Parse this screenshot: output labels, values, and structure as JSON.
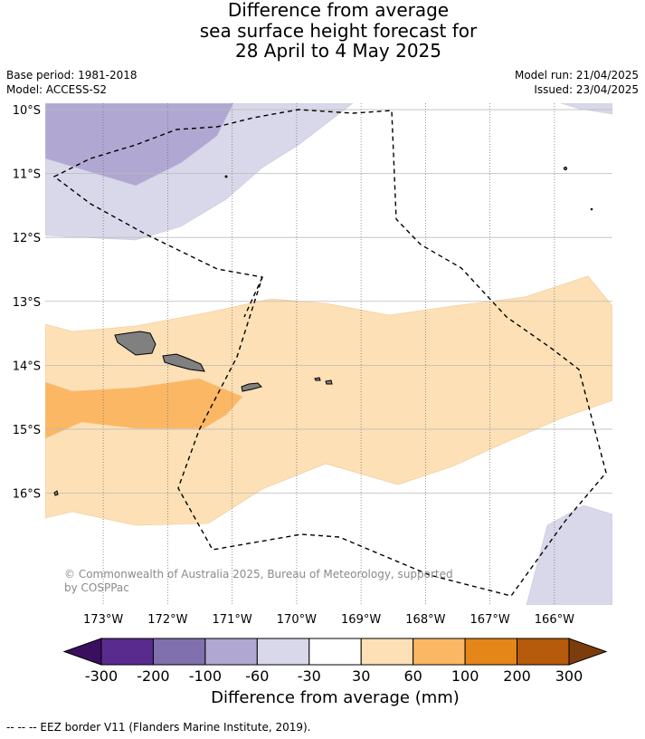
{
  "title": {
    "line1": "Difference from average",
    "line2": "sea surface height forecast for",
    "line3": "28 April to 4 May 2025"
  },
  "meta": {
    "base_period": "Base period: 1981-2018",
    "model": "Model: ACCESS-S2",
    "model_run": "Model run: 21/04/2025",
    "issued": "Issued: 23/04/2025"
  },
  "map": {
    "lon_min": -173.9,
    "lon_max": -165.1,
    "lat_min": -17.75,
    "lat_max": -9.9,
    "lon_ticks": [
      "173°W",
      "172°W",
      "171°W",
      "170°W",
      "169°W",
      "168°W",
      "167°W",
      "166°W"
    ],
    "lon_tick_values": [
      -173,
      -172,
      -171,
      -170,
      -169,
      -168,
      -167,
      -166
    ],
    "lat_ticks": [
      "10°S",
      "11°S",
      "12°S",
      "13°S",
      "14°S",
      "15°S",
      "16°S"
    ],
    "lat_tick_values": [
      -10,
      -11,
      -12,
      -13,
      -14,
      -15,
      -16
    ],
    "copyright_line1": "© Commonwealth of Australia 2025, Bureau of Meteorology, supported",
    "copyright_line2": "by COSPPac",
    "colors": {
      "neg300": "#3b0f5f",
      "neg200": "#5a2b8e",
      "neg100": "#8070ad",
      "neg60": "#b0a8d2",
      "neg30": "#d8d8ea",
      "zero": "#ffffff",
      "pos30": "#fde0b5",
      "pos60": "#fbb763",
      "pos100": "#e48618",
      "pos200": "#b65b0b",
      "pos300": "#7c3d0c",
      "land": "#808080",
      "grid": "#777777",
      "eez": "#000000"
    }
  },
  "colorbar": {
    "labels": [
      "-300",
      "-200",
      "-100",
      "-60",
      "-30",
      "30",
      "60",
      "100",
      "200",
      "300"
    ],
    "title": "Difference from average (mm)"
  },
  "footnote": "--  --  -- EEZ border V11 (Flanders Marine Institute, 2019)."
}
